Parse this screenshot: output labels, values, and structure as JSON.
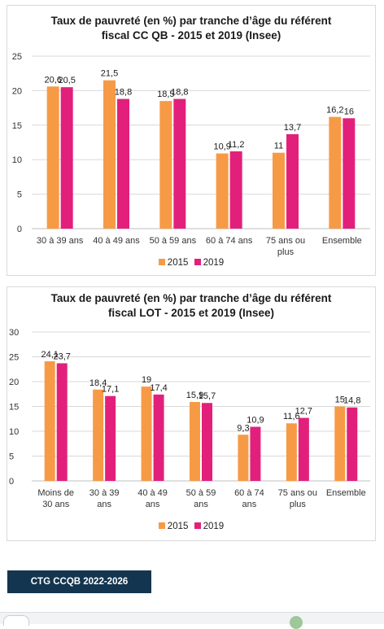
{
  "charts": [
    {
      "id": "chart1",
      "title_line1": "Taux de pauvreté (en %) par tranche d’âge du référent",
      "title_line2": "fiscal  CC QB - 2015 et 2019 (Insee)",
      "legend": [
        "2015",
        "2019"
      ]
    },
    {
      "id": "chart2",
      "title_line1": "Taux de pauvreté (en %) par tranche d’âge du référent",
      "title_line2": "fiscal  LOT - 2015 et 2019 (Insee)",
      "legend": [
        "2015",
        "2019"
      ]
    }
  ],
  "colors": {
    "s2015": "#f79a46",
    "s2019": "#e2207b",
    "grid": "#d9d9d9",
    "axis_text": "#333333"
  },
  "chart_data": [
    {
      "type": "bar",
      "title": "Taux de pauvreté (en %) par tranche d’âge du référent fiscal  CC QB - 2015 et 2019 (Insee)",
      "categories": [
        [
          "30 à 39 ans"
        ],
        [
          "40 à 49 ans"
        ],
        [
          "50 à 59 ans"
        ],
        [
          "60 à 74 ans"
        ],
        [
          "75 ans ou",
          "plus"
        ],
        [
          "Ensemble"
        ]
      ],
      "series": [
        {
          "name": "2015",
          "values": [
            20.6,
            21.5,
            18.5,
            10.9,
            11,
            16.2
          ],
          "labels": [
            "20,6",
            "21,5",
            "18,5",
            "10,9",
            "11",
            "16,2"
          ]
        },
        {
          "name": "2019",
          "values": [
            20.5,
            18.8,
            18.8,
            11.2,
            13.7,
            16
          ],
          "labels": [
            "20,5",
            "18,8",
            "18,8",
            "11,2",
            "13,7",
            "16"
          ]
        }
      ],
      "yticks": [
        "0",
        "5",
        "10",
        "15",
        "20",
        "25"
      ],
      "ylim": [
        0,
        25
      ],
      "grid": true,
      "legend_position": "bottom"
    },
    {
      "type": "bar",
      "title": "Taux de pauvreté (en %) par tranche d’âge du référent fiscal  LOT - 2015 et 2019 (Insee)",
      "categories": [
        [
          "Moins de",
          "30 ans"
        ],
        [
          "30 à 39",
          "ans"
        ],
        [
          "40 à 49",
          "ans"
        ],
        [
          "50 à 59",
          "ans"
        ],
        [
          "60 à 74",
          "ans"
        ],
        [
          "75 ans ou",
          "plus"
        ],
        [
          "Ensemble"
        ]
      ],
      "series": [
        {
          "name": "2015",
          "values": [
            24.1,
            18.4,
            19,
            15.9,
            9.3,
            11.6,
            15
          ],
          "labels": [
            "24,1",
            "18,4",
            "19",
            "15,9",
            "9,3",
            "11,6",
            "15"
          ]
        },
        {
          "name": "2019",
          "values": [
            23.7,
            17.1,
            17.4,
            15.7,
            10.9,
            12.7,
            14.8
          ],
          "labels": [
            "23,7",
            "17,1",
            "17,4",
            "15,7",
            "10,9",
            "12,7",
            "14,8"
          ]
        }
      ],
      "yticks": [
        "0",
        "5",
        "10",
        "15",
        "20",
        "25",
        "30"
      ],
      "ylim": [
        0,
        30
      ],
      "grid": true,
      "legend_position": "bottom"
    }
  ],
  "footer": {
    "tag_label": "CTG CCQB 2022-2026"
  }
}
